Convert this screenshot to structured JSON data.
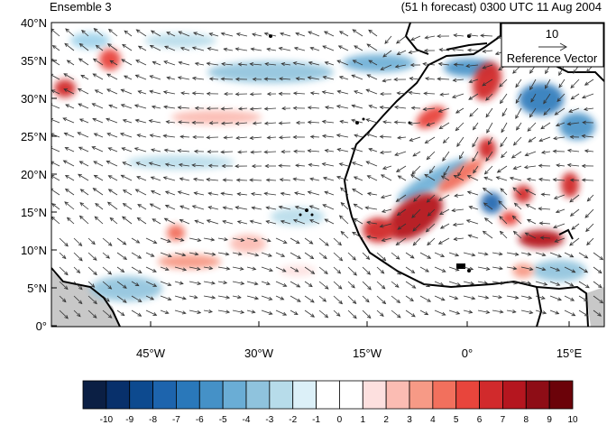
{
  "title_left": "Ensemble 3",
  "title_right": "(51 h forecast) 0300 UTC 11 Aug 2004",
  "reference_vector": {
    "magnitude": "10",
    "label": "Reference Vector"
  },
  "axes": {
    "lat_labels": [
      "40°N",
      "35°N",
      "30°N",
      "25°N",
      "20°N",
      "15°N",
      "10°N",
      "5°N",
      "0°"
    ],
    "lon_labels": [
      "45°W",
      "30°W",
      "15°W",
      "0°",
      "15°E"
    ],
    "lat_range": [
      0,
      40
    ],
    "lon_range": [
      -57,
      19
    ]
  },
  "colorbar": {
    "labels": [
      "-10",
      "-9",
      "-8",
      "-7",
      "-6",
      "-5",
      "-4",
      "-3",
      "-2",
      "-1",
      "0",
      "1",
      "2",
      "3",
      "4",
      "5",
      "6",
      "7",
      "8",
      "9",
      "10"
    ],
    "colors": [
      "#0b1f44",
      "#08306b",
      "#0d4a8f",
      "#1d64ad",
      "#2a78ba",
      "#4591c7",
      "#6aadd5",
      "#8fc3dd",
      "#b7dcea",
      "#dcf0f8",
      "#ffffff",
      "#ffffff",
      "#fde0df",
      "#fbbcb3",
      "#f79a86",
      "#f2705d",
      "#e8453c",
      "#d12a2c",
      "#b5161f",
      "#8e0d16",
      "#6b0209"
    ]
  },
  "map_colors": {
    "land_shade": "#c8c8c8",
    "coast": "#000000",
    "arrow": "#333333"
  }
}
